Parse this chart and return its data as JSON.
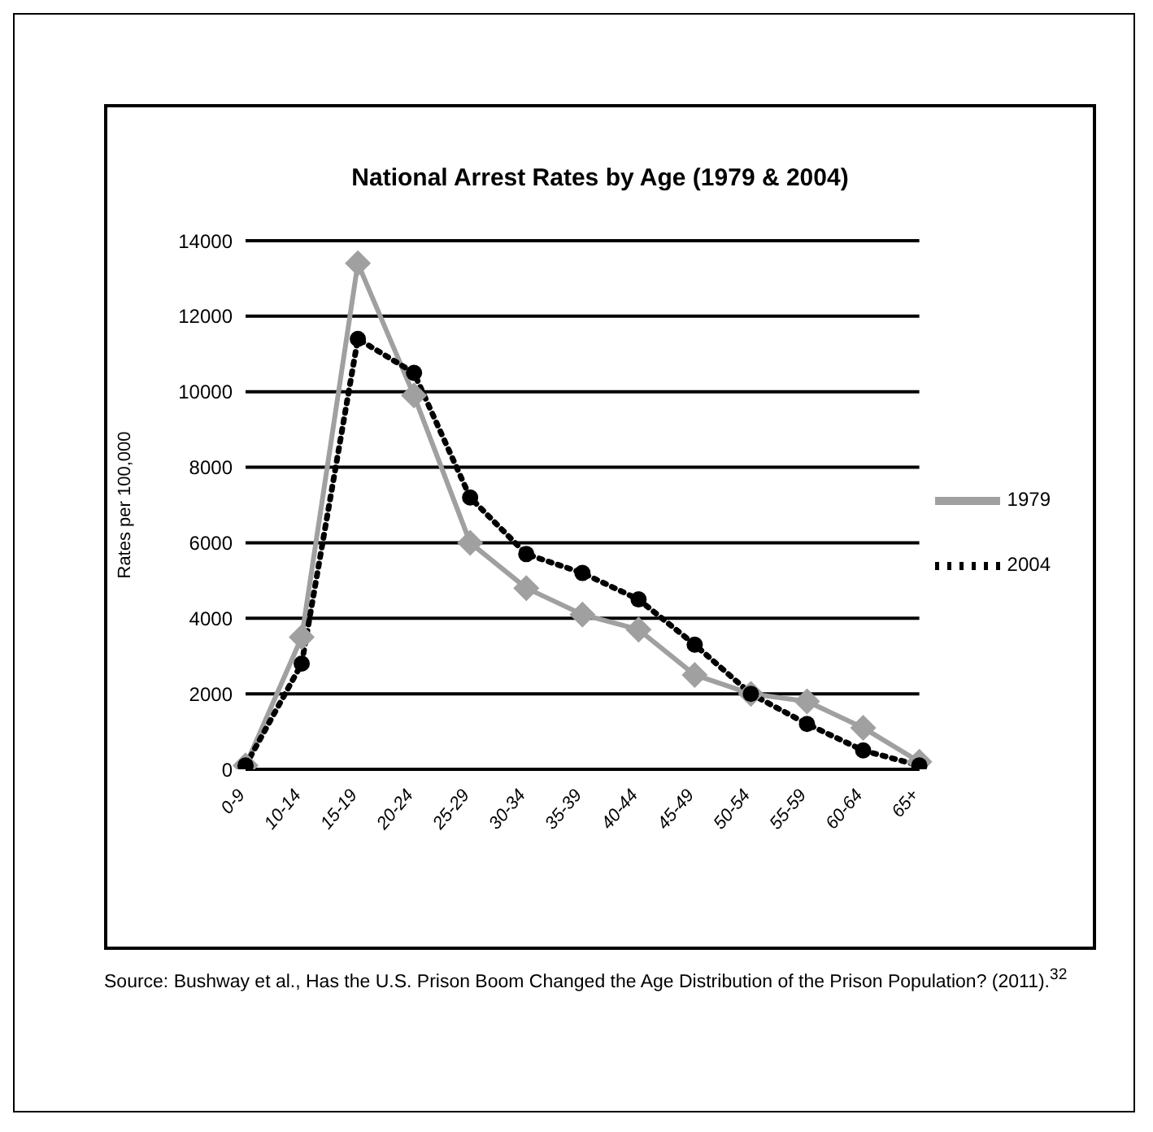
{
  "chart_data": {
    "type": "line",
    "title": "National Arrest Rates by Age (1979 & 2004)",
    "ylabel": "Rates per 100,000",
    "categories": [
      "0-9",
      "10-14",
      "15-19",
      "20-24",
      "25-29",
      "30-34",
      "35-39",
      "40-44",
      "45-49",
      "50-54",
      "55-59",
      "60-64",
      "65+"
    ],
    "series": [
      {
        "name": "1979",
        "color": "#a0a0a0",
        "marker": "diamond",
        "line_style": "solid",
        "values": [
          100,
          3500,
          13400,
          9900,
          6000,
          4800,
          4100,
          3700,
          2500,
          2000,
          1800,
          1100,
          200
        ]
      },
      {
        "name": "2004",
        "color": "#000000",
        "marker": "circle",
        "line_style": "dotted",
        "values": [
          100,
          2800,
          11400,
          10500,
          7200,
          5700,
          5200,
          4500,
          3300,
          2000,
          1200,
          500,
          100
        ]
      }
    ],
    "ylim": [
      0,
      14000
    ],
    "yticks": [
      0,
      2000,
      4000,
      6000,
      8000,
      10000,
      12000,
      14000
    ],
    "grid": "y",
    "legend": "right",
    "annotations": [
      "Source: Bushway et al., Has the U.S. Prison Boom Changed the Age Distribution of the Prison Population? (2011).$^{32}$"
    ]
  }
}
